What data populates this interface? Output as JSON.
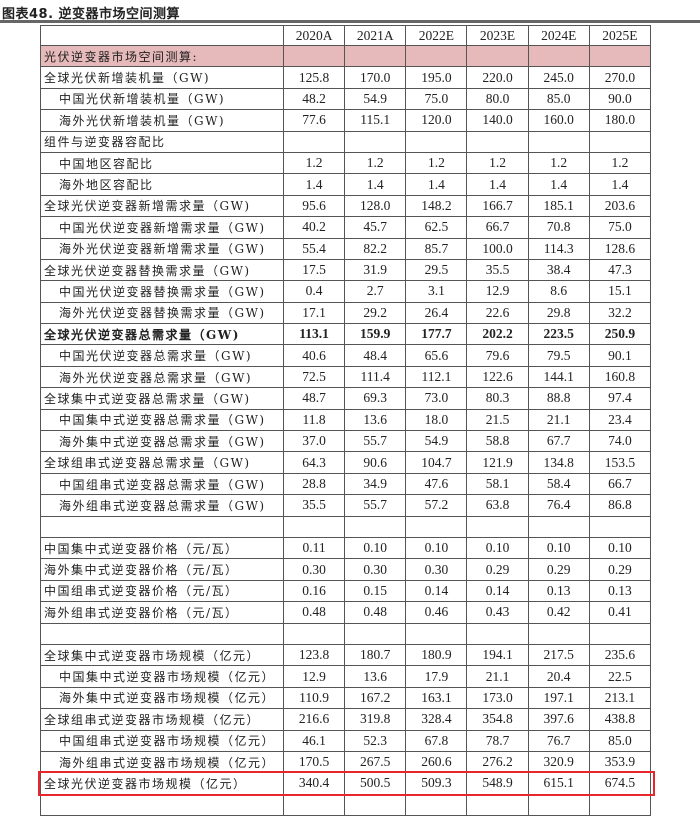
{
  "title": "图表48. 逆变器市场空间测算",
  "columns": [
    "",
    "2020A",
    "2021A",
    "2022E",
    "2023E",
    "2024E",
    "2025E"
  ],
  "rows": [
    {
      "label": "光伏逆变器市场空间测算:",
      "indent": false,
      "style": "section",
      "values": [
        "",
        "",
        "",
        "",
        "",
        ""
      ]
    },
    {
      "label": "全球光伏新增装机量（GW)",
      "indent": false,
      "values": [
        "125.8",
        "170.0",
        "195.0",
        "220.0",
        "245.0",
        "270.0"
      ]
    },
    {
      "label": "中国光伏新增装机量（GW)",
      "indent": true,
      "values": [
        "48.2",
        "54.9",
        "75.0",
        "80.0",
        "85.0",
        "90.0"
      ]
    },
    {
      "label": "海外光伏新增装机量（GW)",
      "indent": true,
      "values": [
        "77.6",
        "115.1",
        "120.0",
        "140.0",
        "160.0",
        "180.0"
      ]
    },
    {
      "label": "组件与逆变器容配比",
      "indent": false,
      "values": [
        "",
        "",
        "",
        "",
        "",
        ""
      ]
    },
    {
      "label": "中国地区容配比",
      "indent": true,
      "values": [
        "1.2",
        "1.2",
        "1.2",
        "1.2",
        "1.2",
        "1.2"
      ]
    },
    {
      "label": "海外地区容配比",
      "indent": true,
      "values": [
        "1.4",
        "1.4",
        "1.4",
        "1.4",
        "1.4",
        "1.4"
      ]
    },
    {
      "label": "全球光伏逆变器新增需求量（GW)",
      "indent": false,
      "values": [
        "95.6",
        "128.0",
        "148.2",
        "166.7",
        "185.1",
        "203.6"
      ]
    },
    {
      "label": "中国光伏逆变器新增需求量（GW)",
      "indent": true,
      "values": [
        "40.2",
        "45.7",
        "62.5",
        "66.7",
        "70.8",
        "75.0"
      ]
    },
    {
      "label": "海外光伏逆变器新增需求量（GW)",
      "indent": true,
      "values": [
        "55.4",
        "82.2",
        "85.7",
        "100.0",
        "114.3",
        "128.6"
      ]
    },
    {
      "label": "全球光伏逆变器替换需求量（GW)",
      "indent": false,
      "values": [
        "17.5",
        "31.9",
        "29.5",
        "35.5",
        "38.4",
        "47.3"
      ]
    },
    {
      "label": "中国光伏逆变器替换需求量（GW)",
      "indent": true,
      "values": [
        "0.4",
        "2.7",
        "3.1",
        "12.9",
        "8.6",
        "15.1"
      ]
    },
    {
      "label": "海外光伏逆变器替换需求量（GW)",
      "indent": true,
      "values": [
        "17.1",
        "29.2",
        "26.4",
        "22.6",
        "29.8",
        "32.2"
      ]
    },
    {
      "label": "全球光伏逆变器总需求量（GW)",
      "indent": false,
      "style": "bold",
      "values": [
        "113.1",
        "159.9",
        "177.7",
        "202.2",
        "223.5",
        "250.9"
      ]
    },
    {
      "label": "中国光伏逆变器总需求量（GW)",
      "indent": true,
      "values": [
        "40.6",
        "48.4",
        "65.6",
        "79.6",
        "79.5",
        "90.1"
      ]
    },
    {
      "label": "海外光伏逆变器总需求量（GW)",
      "indent": true,
      "values": [
        "72.5",
        "111.4",
        "112.1",
        "122.6",
        "144.1",
        "160.8"
      ]
    },
    {
      "label": "全球集中式逆变器总需求量（GW)",
      "indent": false,
      "values": [
        "48.7",
        "69.3",
        "73.0",
        "80.3",
        "88.8",
        "97.4"
      ]
    },
    {
      "label": "中国集中式逆变器总需求量（GW)",
      "indent": true,
      "values": [
        "11.8",
        "13.6",
        "18.0",
        "21.5",
        "21.1",
        "23.4"
      ]
    },
    {
      "label": "海外集中式逆变器总需求量（GW)",
      "indent": true,
      "values": [
        "37.0",
        "55.7",
        "54.9",
        "58.8",
        "67.7",
        "74.0"
      ]
    },
    {
      "label": "全球组串式逆变器总需求量（GW)",
      "indent": false,
      "values": [
        "64.3",
        "90.6",
        "104.7",
        "121.9",
        "134.8",
        "153.5"
      ]
    },
    {
      "label": "中国组串式逆变器总需求量（GW)",
      "indent": true,
      "values": [
        "28.8",
        "34.9",
        "47.6",
        "58.1",
        "58.4",
        "66.7"
      ]
    },
    {
      "label": "海外组串式逆变器总需求量（GW)",
      "indent": true,
      "values": [
        "35.5",
        "55.7",
        "57.2",
        "63.8",
        "76.4",
        "86.8"
      ]
    },
    {
      "label": "",
      "indent": false,
      "values": [
        "",
        "",
        "",
        "",
        "",
        ""
      ]
    },
    {
      "label": "中国集中式逆变器价格（元/瓦）",
      "indent": false,
      "values": [
        "0.11",
        "0.10",
        "0.10",
        "0.10",
        "0.10",
        "0.10"
      ]
    },
    {
      "label": "海外集中式逆变器价格（元/瓦）",
      "indent": false,
      "values": [
        "0.30",
        "0.30",
        "0.30",
        "0.29",
        "0.29",
        "0.29"
      ]
    },
    {
      "label": "中国组串式逆变器价格（元/瓦）",
      "indent": false,
      "values": [
        "0.16",
        "0.15",
        "0.14",
        "0.14",
        "0.13",
        "0.13"
      ]
    },
    {
      "label": "海外组串式逆变器价格（元/瓦）",
      "indent": false,
      "values": [
        "0.48",
        "0.48",
        "0.46",
        "0.43",
        "0.42",
        "0.41"
      ]
    },
    {
      "label": "",
      "indent": false,
      "values": [
        "",
        "",
        "",
        "",
        "",
        ""
      ]
    },
    {
      "label": "全球集中式逆变器市场规模（亿元）",
      "indent": false,
      "values": [
        "123.8",
        "180.7",
        "180.9",
        "194.1",
        "217.5",
        "235.6"
      ]
    },
    {
      "label": "中国集中式逆变器市场规模（亿元）",
      "indent": true,
      "values": [
        "12.9",
        "13.6",
        "17.9",
        "21.1",
        "20.4",
        "22.5"
      ]
    },
    {
      "label": "海外集中式逆变器市场规模（亿元）",
      "indent": true,
      "values": [
        "110.9",
        "167.2",
        "163.1",
        "173.0",
        "197.1",
        "213.1"
      ]
    },
    {
      "label": "全球组串式逆变器市场规模（亿元）",
      "indent": false,
      "values": [
        "216.6",
        "319.8",
        "328.4",
        "354.8",
        "397.6",
        "438.8"
      ]
    },
    {
      "label": "中国组串式逆变器市场规模（亿元）",
      "indent": true,
      "values": [
        "46.1",
        "52.3",
        "67.8",
        "78.7",
        "76.7",
        "85.0"
      ]
    },
    {
      "label": "海外组串式逆变器市场规模（亿元）",
      "indent": true,
      "values": [
        "170.5",
        "267.5",
        "260.6",
        "276.2",
        "320.9",
        "353.9"
      ]
    },
    {
      "label": "全球光伏逆变器市场规模（亿元）",
      "indent": false,
      "style": "highlight",
      "values": [
        "340.4",
        "500.5",
        "509.3",
        "548.9",
        "615.1",
        "674.5"
      ]
    },
    {
      "label": "",
      "indent": false,
      "values": [
        "",
        "",
        "",
        "",
        "",
        ""
      ]
    }
  ],
  "colors": {
    "section_fill": "#e6b9ba",
    "highlight_border": "#e8262b",
    "rule": "#666666"
  }
}
